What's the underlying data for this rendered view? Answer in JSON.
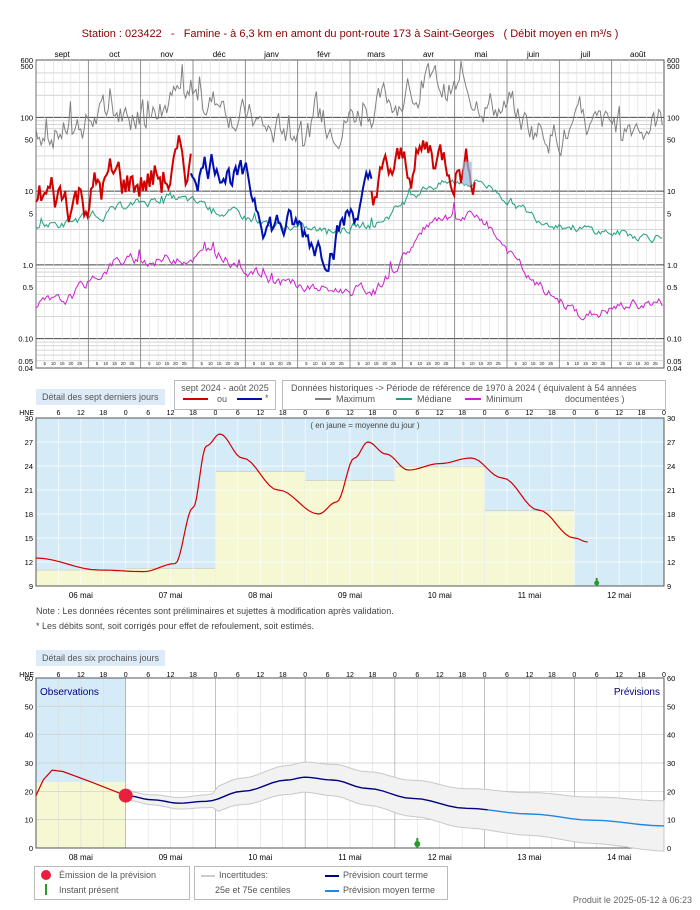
{
  "header": {
    "station_label": "Station : 023422",
    "separator": "-",
    "station_name": "Famine - à 6,3 km en amont du pont-route 173 à Saint-Georges",
    "quantity": "( Débit moyen en m³/s )"
  },
  "colors": {
    "current_year_red": "#d00000",
    "current_year_blue": "#0010b0",
    "maximum": "#808080",
    "median": "#20a080",
    "minimum": "#cc22cc",
    "observation_bg": "#d6ebf8",
    "daily_mean_fill": "#f5f8d2",
    "short_term": "#000080",
    "medium_term": "#1e88e5",
    "emission_dot": "#e8203f",
    "present_marker": "#2a9a2a"
  },
  "legend_top": {
    "seven_days_label": "Détail des sept derniers jours",
    "period_label": "sept 2024 - août 2025",
    "or_label": "ou",
    "star_label": "*",
    "historic_label": "Données historiques -> Période de référence  de 1970 à 2024   ( équivalent à 54 années",
    "documented_label": "documentées )",
    "max_label": "Maximum",
    "median_label": "Médiane",
    "min_label": "Minimum"
  },
  "chart_annual": {
    "months": [
      "sept",
      "oct",
      "nov",
      "déc",
      "janv",
      "févr",
      "mars",
      "avr",
      "mai",
      "juin",
      "juil",
      "août"
    ],
    "y_ticks": [
      "600",
      "500",
      "100",
      "50",
      "10",
      "5",
      "1.0",
      "0.5",
      "0.10",
      "0.05",
      "0.04"
    ],
    "day_ticks": "5 10 15 20 25"
  },
  "chart_week": {
    "hne_label": "HNE",
    "hour_ticks": [
      "6",
      "12",
      "18",
      "0"
    ],
    "y_ticks": [
      "30",
      "27",
      "24",
      "21",
      "18",
      "15",
      "12",
      "9"
    ],
    "days": [
      "06 mai",
      "07 mai",
      "08 mai",
      "09 mai",
      "10 mai",
      "11 mai",
      "12 mai"
    ],
    "mean_note": "( en jaune = moyenne du jour )"
  },
  "notes": {
    "line1": "Note : Les données récentes sont préliminaires et sujettes à modification après validation.",
    "line2": "* Les débits sont, soit corrigés pour effet de refoulement, soit estimés."
  },
  "forecast_header": "Détail des six prochains jours",
  "chart_forecast": {
    "observations_label": "Observations",
    "previsions_label": "Prévisions",
    "y_ticks": [
      "60",
      "50",
      "40",
      "30",
      "20",
      "10",
      "0"
    ],
    "days": [
      "08 mai",
      "09 mai",
      "10 mai",
      "11 mai",
      "12 mai",
      "13 mai",
      "14 mai"
    ]
  },
  "legend_bottom": {
    "emission": "Émission de la prévision",
    "present": "Instant présent",
    "uncertainty": "Incertitudes:",
    "percentiles": "25e et 75e centiles",
    "short_term": "Prévision court terme",
    "medium_term": "Prévision moyen terme"
  },
  "produced": "Produit le 2025-05-12 à 06:23",
  "chart_data": [
    {
      "type": "line",
      "title": "Station : 023422 - Famine - à 6,3 km en amont du pont-route 173 à Saint-Georges ( Débit moyen en m³/s )",
      "yscale": "log",
      "ylim": [
        0.04,
        600
      ],
      "x": [
        "sept",
        "oct",
        "nov",
        "déc",
        "janv",
        "févr",
        "mars",
        "avr",
        "mai",
        "juin",
        "juil",
        "août"
      ],
      "series": [
        {
          "name": "Maximum",
          "values": [
            70,
            110,
            180,
            170,
            60,
            80,
            140,
            280,
            190,
            75,
            60,
            90
          ]
        },
        {
          "name": "Médiane",
          "values": [
            3.5,
            5.5,
            8.5,
            5.5,
            3.5,
            2.8,
            3.6,
            12,
            14,
            4.5,
            3,
            2.5
          ]
        },
        {
          "name": "Minimum",
          "values": [
            0.3,
            1.1,
            1.2,
            1.4,
            0.6,
            0.45,
            0.45,
            3.5,
            4.5,
            0.55,
            0.2,
            0.3
          ]
        },
        {
          "name": "sept 2024 - août 2025",
          "values": [
            8,
            12,
            16,
            30,
            4,
            2,
            12,
            35,
            20,
            null,
            null,
            null
          ]
        }
      ]
    },
    {
      "type": "line",
      "title": "Détail des sept derniers jours",
      "ylim": [
        9,
        30
      ],
      "x": [
        "06 mai",
        "07 mai",
        "08 mai",
        "09 mai",
        "10 mai",
        "11 mai",
        "12 mai"
      ],
      "series": [
        {
          "name": "Débit",
          "values": [
            12.5,
            10.8,
            26.5,
            18.5,
            24.5,
            19.5,
            null
          ]
        },
        {
          "name": "moyenne du jour",
          "values": [
            11.0,
            11.2,
            23.3,
            22.2,
            23.9,
            18.4,
            null
          ]
        }
      ]
    },
    {
      "type": "line",
      "title": "Détail des six prochains jours",
      "ylim": [
        0,
        60
      ],
      "x": [
        "08 mai",
        "09 mai",
        "10 mai",
        "11 mai",
        "12 mai",
        "13 mai",
        "14 mai"
      ],
      "series": [
        {
          "name": "Observations",
          "values": [
            26,
            18,
            null,
            null,
            null,
            null,
            null
          ]
        },
        {
          "name": "Prévision court terme",
          "values": [
            null,
            16,
            24,
            21,
            16,
            12,
            9
          ]
        },
        {
          "name": "Prévision moyen terme",
          "values": [
            null,
            null,
            null,
            null,
            14,
            11,
            7.5
          ]
        }
      ]
    }
  ]
}
